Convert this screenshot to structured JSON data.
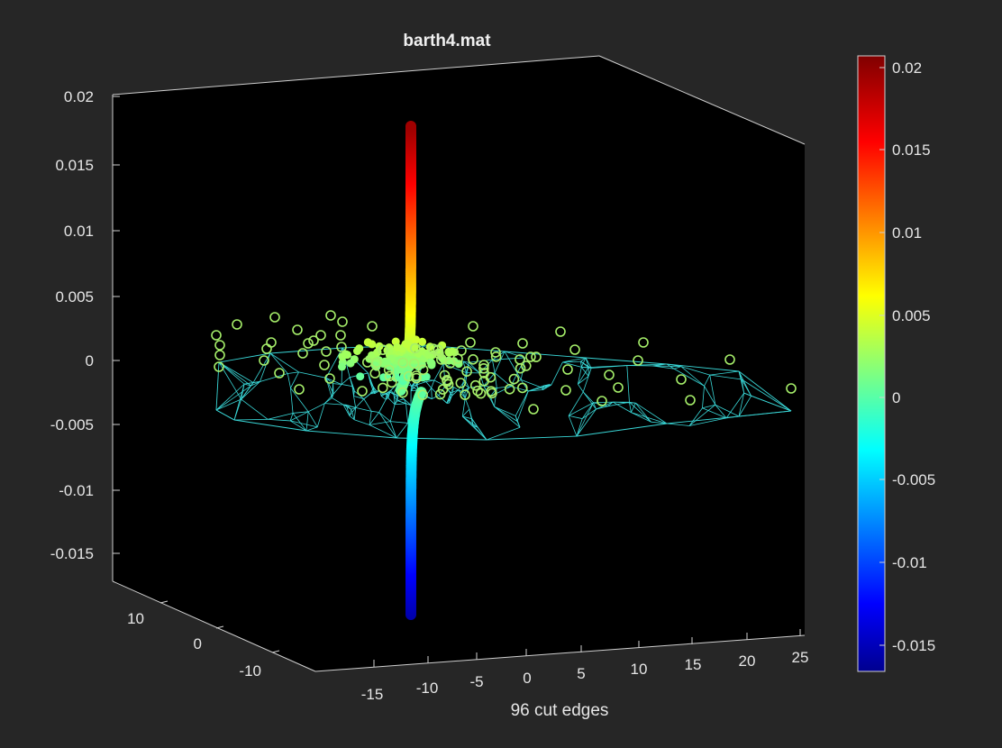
{
  "chart_data": {
    "type": "scatter",
    "title": "barth4.mat",
    "xlabel": "96 cut edges",
    "ylabel": "",
    "zlabel": "",
    "x_ticks": [
      "-15",
      "-10",
      "-5",
      "0",
      "5",
      "10",
      "15",
      "20",
      "25"
    ],
    "y_ticks": [
      "10",
      "0",
      "-10"
    ],
    "z_ticks": [
      "0.02",
      "0.015",
      "0.01",
      "0.005",
      "0",
      "-0.005",
      "-0.01",
      "-0.015"
    ],
    "xlim": [
      -18,
      27
    ],
    "ylim": [
      -15,
      15
    ],
    "zlim": [
      -0.018,
      0.021
    ],
    "colorbar": {
      "colormap": "jet",
      "range": [
        -0.0165,
        0.0208
      ],
      "ticks": [
        "0.02",
        "0.015",
        "0.01",
        "0.005",
        "0",
        "-0.005",
        "-0.01",
        "-0.015"
      ]
    },
    "series": [
      {
        "kind": "eigenvector-points",
        "count": 96,
        "z_min": -0.0155,
        "z_max": 0.0195
      },
      {
        "kind": "mesh-edges",
        "color": "#39d6d6"
      },
      {
        "kind": "cut-edge-markers",
        "marker": "circle",
        "color": "#a6ef6a",
        "count": 96
      }
    ],
    "colors": {
      "figure_background": "#262626",
      "axes_background": "#000000",
      "axis_lines": "#cfcfcf",
      "mesh": "#39d6d6",
      "markers": "#a6ef6a"
    }
  }
}
